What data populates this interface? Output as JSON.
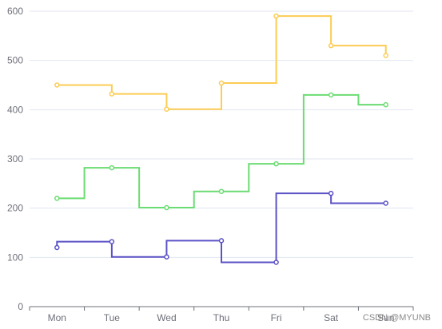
{
  "chart_data": {
    "type": "line",
    "step": true,
    "categories": [
      "Mon",
      "Tue",
      "Wed",
      "Thu",
      "Fri",
      "Sat",
      "Sun"
    ],
    "series": [
      {
        "step": "start",
        "color": "#5b52c6",
        "values": [
          120,
          132,
          101,
          134,
          90,
          230,
          210
        ]
      },
      {
        "step": "middle",
        "color": "#6bdc72",
        "values": [
          220,
          282,
          201,
          234,
          290,
          430,
          410
        ]
      },
      {
        "step": "end",
        "color": "#fccc53",
        "values": [
          450,
          432,
          401,
          454,
          590,
          530,
          510
        ]
      }
    ],
    "y_ticks": [
      0,
      100,
      200,
      300,
      400,
      500,
      600
    ],
    "ylim": [
      0,
      600
    ],
    "grid": true,
    "title": "",
    "xlabel": "",
    "ylabel": ""
  },
  "watermark": "CSDN @MYUNB"
}
